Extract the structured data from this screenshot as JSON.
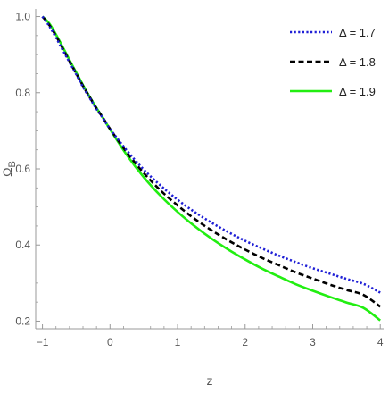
{
  "chart_data": {
    "type": "line",
    "title": "",
    "xlabel": "z",
    "ylabel": "Ω",
    "ylabel_subscript": "B",
    "xlim": [
      -1.1,
      4.05
    ],
    "ylim": [
      0.18,
      1.02
    ],
    "x_ticks": [
      -1,
      0,
      1,
      2,
      3,
      4
    ],
    "y_ticks": [
      0.2,
      0.4,
      0.6,
      0.8,
      1.0
    ],
    "x_tick_labels": [
      "−1",
      "0",
      "1",
      "2",
      "3",
      "4"
    ],
    "y_tick_labels": [
      "0.2",
      "0.4",
      "0.6",
      "0.8",
      "1.0"
    ],
    "grid": false,
    "legend_position": "top-right",
    "series": [
      {
        "name": "Δ = 1.7",
        "color": "#1f1fd6",
        "style": "dotted",
        "points": [
          [
            -1.0,
            1.0
          ],
          [
            -0.9,
            0.975
          ],
          [
            -0.8,
            0.945
          ],
          [
            -0.7,
            0.912
          ],
          [
            -0.6,
            0.88
          ],
          [
            -0.5,
            0.848
          ],
          [
            -0.4,
            0.815
          ],
          [
            -0.3,
            0.786
          ],
          [
            -0.2,
            0.757
          ],
          [
            -0.1,
            0.732
          ],
          [
            0.0,
            0.705
          ],
          [
            0.25,
            0.648
          ],
          [
            0.5,
            0.598
          ],
          [
            0.75,
            0.556
          ],
          [
            1.0,
            0.519
          ],
          [
            1.25,
            0.487
          ],
          [
            1.5,
            0.459
          ],
          [
            1.75,
            0.434
          ],
          [
            2.0,
            0.411
          ],
          [
            2.25,
            0.391
          ],
          [
            2.5,
            0.372
          ],
          [
            2.75,
            0.355
          ],
          [
            3.0,
            0.339
          ],
          [
            3.25,
            0.325
          ],
          [
            3.5,
            0.311
          ],
          [
            3.75,
            0.298
          ],
          [
            4.0,
            0.275
          ]
        ]
      },
      {
        "name": "Δ = 1.8",
        "color": "#000000",
        "style": "dashed",
        "points": [
          [
            -1.0,
            1.0
          ],
          [
            -0.9,
            0.978
          ],
          [
            -0.8,
            0.949
          ],
          [
            -0.7,
            0.916
          ],
          [
            -0.6,
            0.883
          ],
          [
            -0.5,
            0.85
          ],
          [
            -0.4,
            0.818
          ],
          [
            -0.3,
            0.788
          ],
          [
            -0.2,
            0.759
          ],
          [
            -0.1,
            0.733
          ],
          [
            0.0,
            0.705
          ],
          [
            0.25,
            0.643
          ],
          [
            0.5,
            0.589
          ],
          [
            0.75,
            0.543
          ],
          [
            1.0,
            0.504
          ],
          [
            1.25,
            0.469
          ],
          [
            1.5,
            0.439
          ],
          [
            1.75,
            0.412
          ],
          [
            2.0,
            0.388
          ],
          [
            2.25,
            0.366
          ],
          [
            2.5,
            0.347
          ],
          [
            2.75,
            0.328
          ],
          [
            3.0,
            0.312
          ],
          [
            3.25,
            0.296
          ],
          [
            3.5,
            0.282
          ],
          [
            3.75,
            0.269
          ],
          [
            4.0,
            0.238
          ]
        ]
      },
      {
        "name": "Δ = 1.9",
        "color": "#22ee11",
        "style": "solid",
        "points": [
          [
            -1.0,
            1.0
          ],
          [
            -0.9,
            0.982
          ],
          [
            -0.8,
            0.953
          ],
          [
            -0.7,
            0.92
          ],
          [
            -0.6,
            0.886
          ],
          [
            -0.5,
            0.853
          ],
          [
            -0.4,
            0.82
          ],
          [
            -0.3,
            0.789
          ],
          [
            -0.2,
            0.76
          ],
          [
            -0.1,
            0.733
          ],
          [
            0.0,
            0.704
          ],
          [
            0.25,
            0.636
          ],
          [
            0.5,
            0.578
          ],
          [
            0.75,
            0.529
          ],
          [
            1.0,
            0.487
          ],
          [
            1.25,
            0.45
          ],
          [
            1.5,
            0.417
          ],
          [
            1.75,
            0.388
          ],
          [
            2.0,
            0.362
          ],
          [
            2.25,
            0.338
          ],
          [
            2.5,
            0.317
          ],
          [
            2.75,
            0.297
          ],
          [
            3.0,
            0.28
          ],
          [
            3.25,
            0.264
          ],
          [
            3.5,
            0.249
          ],
          [
            3.75,
            0.235
          ],
          [
            4.0,
            0.202
          ]
        ]
      }
    ]
  }
}
